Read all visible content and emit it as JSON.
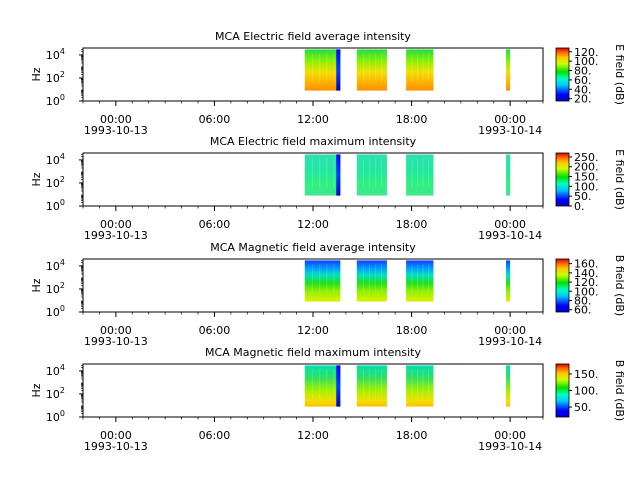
{
  "chart_data": [
    {
      "type": "heatmap",
      "title": "MCA  Electric field average intensity",
      "ylabel": "Hz",
      "colorbar_label": "E field (dB)",
      "colorbar_ticks": [
        "20.",
        "40.",
        "60.",
        "80.",
        "100.",
        "120."
      ],
      "colorbar_range": [
        15,
        128
      ],
      "blocks": [
        {
          "start": "11:30",
          "end": "13:40",
          "fill": "green-yellow-orange",
          "edge_band": "13:25-13:40 blue"
        },
        {
          "start": "14:40",
          "end": "16:30",
          "fill": "green-yellow-orange"
        },
        {
          "start": "17:40",
          "end": "19:20",
          "fill": "green-yellow"
        },
        {
          "start": "23:45",
          "end": "24:00",
          "fill": "green"
        }
      ]
    },
    {
      "type": "heatmap",
      "title": "MCA  Electric field maximum intensity",
      "ylabel": "Hz",
      "colorbar_label": "E field (dB)",
      "colorbar_ticks": [
        "0.",
        "50.",
        "100.",
        "150.",
        "200.",
        "250."
      ],
      "colorbar_range": [
        0,
        270
      ],
      "blocks": [
        {
          "start": "11:30",
          "end": "13:40",
          "fill": "cyan-green",
          "edge_band": "13:25-13:40 blue"
        },
        {
          "start": "14:40",
          "end": "16:30",
          "fill": "cyan-green"
        },
        {
          "start": "17:40",
          "end": "19:20",
          "fill": "cyan-green"
        },
        {
          "start": "23:45",
          "end": "24:00",
          "fill": "cyan"
        }
      ]
    },
    {
      "type": "heatmap",
      "title": "MCA  Magnetic field average intensity",
      "ylabel": "Hz",
      "colorbar_label": "B field (dB)",
      "colorbar_ticks": [
        "60.",
        "80.",
        "100.",
        "120.",
        "140.",
        "160."
      ],
      "colorbar_range": [
        55,
        170
      ],
      "blocks": [
        {
          "start": "11:30",
          "end": "13:40",
          "fill": "blue-top green-mid yellow-bottom"
        },
        {
          "start": "14:40",
          "end": "16:30",
          "fill": "blue-top green-mid yellow-bottom"
        },
        {
          "start": "17:40",
          "end": "19:20",
          "fill": "blue-top green-mid yellow-bottom"
        },
        {
          "start": "23:45",
          "end": "24:00",
          "fill": "blue-top green-mid yellow-bottom"
        }
      ]
    },
    {
      "type": "heatmap",
      "title": "MCA  Magnetic field maximum intensity",
      "ylabel": "Hz",
      "colorbar_label": "B field (dB)",
      "colorbar_ticks": [
        "50.",
        "100.",
        "150."
      ],
      "colorbar_range": [
        20,
        180
      ],
      "blocks": [
        {
          "start": "11:30",
          "end": "13:40",
          "fill": "cyan-top green-mid yellow-bottom",
          "edge_band": "13:25-13:40 blue"
        },
        {
          "start": "14:40",
          "end": "16:30",
          "fill": "cyan-top green-mid yellow-bottom"
        },
        {
          "start": "17:40",
          "end": "19:20",
          "fill": "cyan-top green-mid yellow-bottom"
        },
        {
          "start": "23:45",
          "end": "24:00",
          "fill": "cyan-top green-mid yellow-bottom"
        }
      ]
    }
  ],
  "shared_axes": {
    "x_ticks": [
      {
        "time": "00:00",
        "date": "1993-10-13"
      },
      {
        "time": "06:00",
        "date": ""
      },
      {
        "time": "12:00",
        "date": ""
      },
      {
        "time": "18:00",
        "date": ""
      },
      {
        "time": "00:00",
        "date": "1993-10-14"
      }
    ],
    "x_range_hours": [
      -2,
      26
    ],
    "y_ticks": [
      "10^0",
      "10^2",
      "10^4"
    ],
    "y_range_log10": [
      0,
      4.6
    ]
  }
}
